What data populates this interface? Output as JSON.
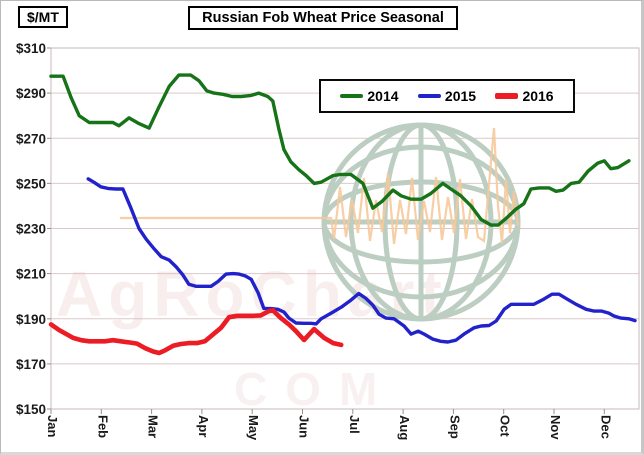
{
  "unit_label": "$/MT",
  "title": "Russian Fob Wheat Price Seasonal",
  "watermark": {
    "line1": "AgRoChart",
    "line2": "COM"
  },
  "colors": {
    "grid": "#dbc9c9",
    "plot_border": "#c9b9b9",
    "tick": "#9a8f8f",
    "watermark_globe": "#bccdc1",
    "watermark_spark": "#f6c99b",
    "watermark_text": "#e3b7b7",
    "series_2014": "#177317",
    "series_2015": "#2222cc",
    "series_2016": "#ec1c24"
  },
  "chart_data": {
    "type": "line",
    "title": "Russian Fob Wheat Price Seasonal",
    "ylabel": "$/MT",
    "xlabel": "",
    "grid": true,
    "legend_position": "top-center-inside",
    "ylim": [
      150,
      310
    ],
    "xlim_months": [
      0,
      11.73
    ],
    "y_tick_prefix": "$",
    "y_tick_values": [
      310,
      290,
      270,
      250,
      230,
      210,
      190,
      170,
      150
    ],
    "x_tick_labels": [
      "Jan",
      "Feb",
      "Mar",
      "Apr",
      "May",
      "Jun",
      "Jul",
      "Aug",
      "Sep",
      "Oct",
      "Nov",
      "Dec"
    ],
    "series": [
      {
        "name": "2014",
        "color": "#177317",
        "width": 3.4,
        "points": [
          [
            0,
            297.5
          ],
          [
            0.24,
            297.5
          ],
          [
            0.4,
            288
          ],
          [
            0.56,
            280
          ],
          [
            0.76,
            277
          ],
          [
            0.99,
            277
          ],
          [
            1.23,
            277
          ],
          [
            1.35,
            275.5
          ],
          [
            1.55,
            279
          ],
          [
            1.75,
            276.5
          ],
          [
            1.95,
            274.5
          ],
          [
            2.15,
            284
          ],
          [
            2.35,
            293
          ],
          [
            2.54,
            298
          ],
          [
            2.78,
            298
          ],
          [
            2.94,
            295.5
          ],
          [
            3.1,
            291
          ],
          [
            3.24,
            290
          ],
          [
            3.42,
            289.5
          ],
          [
            3.6,
            288.5
          ],
          [
            3.78,
            288.5
          ],
          [
            3.98,
            289
          ],
          [
            4.13,
            290
          ],
          [
            4.31,
            288.5
          ],
          [
            4.41,
            286.5
          ],
          [
            4.53,
            274
          ],
          [
            4.63,
            265
          ],
          [
            4.77,
            259.5
          ],
          [
            4.93,
            256
          ],
          [
            5.07,
            253.5
          ],
          [
            5.23,
            250
          ],
          [
            5.37,
            250.5
          ],
          [
            5.61,
            253.5
          ],
          [
            5.77,
            254
          ],
          [
            5.96,
            254
          ],
          [
            6.2,
            250
          ],
          [
            6.4,
            239
          ],
          [
            6.58,
            242
          ],
          [
            6.8,
            247
          ],
          [
            6.96,
            244.5
          ],
          [
            7.16,
            243
          ],
          [
            7.36,
            243
          ],
          [
            7.55,
            245.5
          ],
          [
            7.79,
            250
          ],
          [
            7.95,
            247.5
          ],
          [
            8.15,
            244.5
          ],
          [
            8.35,
            240
          ],
          [
            8.55,
            234
          ],
          [
            8.75,
            231.5
          ],
          [
            8.89,
            231.5
          ],
          [
            9.05,
            234.5
          ],
          [
            9.24,
            238.5
          ],
          [
            9.4,
            241
          ],
          [
            9.54,
            247.5
          ],
          [
            9.7,
            248
          ],
          [
            9.9,
            248
          ],
          [
            10.04,
            246.5
          ],
          [
            10.18,
            247
          ],
          [
            10.34,
            250
          ],
          [
            10.5,
            250.5
          ],
          [
            10.68,
            255.5
          ],
          [
            10.87,
            259
          ],
          [
            11,
            260
          ],
          [
            11.13,
            256.5
          ],
          [
            11.27,
            257
          ],
          [
            11.49,
            260
          ]
        ]
      },
      {
        "name": "2015",
        "color": "#2222cc",
        "width": 3.4,
        "points": [
          [
            0.74,
            252
          ],
          [
            0.85,
            250.5
          ],
          [
            0.99,
            248.5
          ],
          [
            1.15,
            247.7
          ],
          [
            1.29,
            247.5
          ],
          [
            1.43,
            247.5
          ],
          [
            1.59,
            239
          ],
          [
            1.75,
            230
          ],
          [
            1.89,
            225.3
          ],
          [
            2.05,
            221
          ],
          [
            2.19,
            217.5
          ],
          [
            2.35,
            216
          ],
          [
            2.49,
            213
          ],
          [
            2.62,
            209.5
          ],
          [
            2.74,
            205.3
          ],
          [
            2.88,
            204.4
          ],
          [
            3.04,
            204.4
          ],
          [
            3.18,
            204.4
          ],
          [
            3.32,
            206.5
          ],
          [
            3.48,
            209.8
          ],
          [
            3.62,
            210
          ],
          [
            3.74,
            209.8
          ],
          [
            3.86,
            209
          ],
          [
            3.98,
            207.5
          ],
          [
            4.12,
            201.4
          ],
          [
            4.23,
            194.6
          ],
          [
            4.37,
            194.5
          ],
          [
            4.51,
            194.2
          ],
          [
            4.63,
            193
          ],
          [
            4.73,
            190.3
          ],
          [
            4.87,
            188.1
          ],
          [
            5.03,
            188
          ],
          [
            5.17,
            188
          ],
          [
            5.27,
            187.7
          ],
          [
            5.37,
            190
          ],
          [
            5.57,
            192.5
          ],
          [
            5.77,
            195.1
          ],
          [
            5.96,
            198.2
          ],
          [
            6.12,
            201.2
          ],
          [
            6.26,
            199
          ],
          [
            6.4,
            196
          ],
          [
            6.52,
            192
          ],
          [
            6.66,
            190.3
          ],
          [
            6.82,
            190
          ],
          [
            7.02,
            186.8
          ],
          [
            7.16,
            183.2
          ],
          [
            7.3,
            184.5
          ],
          [
            7.42,
            183.2
          ],
          [
            7.59,
            181
          ],
          [
            7.75,
            180
          ],
          [
            7.89,
            179.7
          ],
          [
            8.05,
            180.5
          ],
          [
            8.21,
            183.2
          ],
          [
            8.41,
            186
          ],
          [
            8.55,
            186.8
          ],
          [
            8.71,
            187
          ],
          [
            8.85,
            189
          ],
          [
            9.01,
            194.2
          ],
          [
            9.15,
            196.4
          ],
          [
            9.3,
            196.4
          ],
          [
            9.46,
            196.4
          ],
          [
            9.6,
            196.4
          ],
          [
            9.8,
            198.7
          ],
          [
            9.96,
            200.9
          ],
          [
            10.1,
            200.9
          ],
          [
            10.26,
            198.7
          ],
          [
            10.44,
            196.4
          ],
          [
            10.64,
            194.2
          ],
          [
            10.8,
            193.4
          ],
          [
            10.95,
            193.4
          ],
          [
            11.09,
            192.5
          ],
          [
            11.19,
            191.2
          ],
          [
            11.33,
            190.3
          ],
          [
            11.49,
            190
          ],
          [
            11.61,
            189.2
          ]
        ]
      },
      {
        "name": "2016",
        "color": "#ec1c24",
        "width": 4.6,
        "points": [
          [
            0,
            187.5
          ],
          [
            0.16,
            185
          ],
          [
            0.32,
            183
          ],
          [
            0.44,
            181.5
          ],
          [
            0.6,
            180.5
          ],
          [
            0.76,
            180
          ],
          [
            0.91,
            180
          ],
          [
            1.07,
            180
          ],
          [
            1.23,
            180.5
          ],
          [
            1.39,
            180
          ],
          [
            1.55,
            179.5
          ],
          [
            1.71,
            179
          ],
          [
            1.87,
            177
          ],
          [
            2.03,
            175.5
          ],
          [
            2.15,
            174.8
          ],
          [
            2.27,
            176
          ],
          [
            2.43,
            178
          ],
          [
            2.58,
            178.8
          ],
          [
            2.74,
            179.2
          ],
          [
            2.9,
            179.2
          ],
          [
            3.06,
            180
          ],
          [
            3.22,
            183
          ],
          [
            3.38,
            186
          ],
          [
            3.54,
            190.7
          ],
          [
            3.7,
            191.3
          ],
          [
            3.86,
            191.3
          ],
          [
            4.02,
            191.3
          ],
          [
            4.17,
            191.5
          ],
          [
            4.33,
            193.4
          ],
          [
            4.41,
            193.8
          ],
          [
            4.57,
            190.3
          ],
          [
            4.73,
            187.5
          ],
          [
            4.87,
            184.5
          ],
          [
            5.03,
            180.6
          ],
          [
            5.23,
            185.4
          ],
          [
            5.43,
            181.5
          ],
          [
            5.61,
            179.2
          ],
          [
            5.77,
            178.4
          ]
        ]
      }
    ]
  }
}
